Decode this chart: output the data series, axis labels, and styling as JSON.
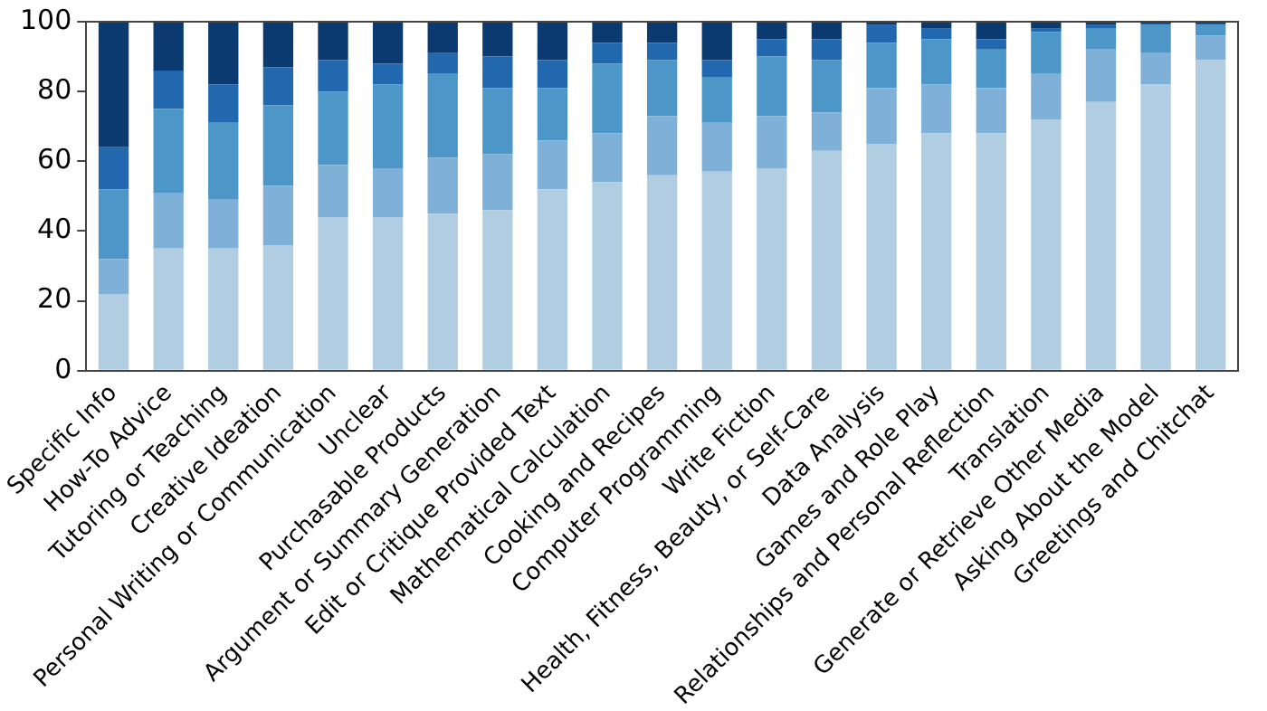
{
  "chart_data": {
    "type": "bar",
    "stacked": true,
    "grid": false,
    "legend": false,
    "categories": [
      "Specific Info",
      "How-To Advice",
      "Tutoring or Teaching",
      "Creative Ideation",
      "Personal Writing or Communication",
      "Unclear",
      "Purchasable Products",
      "Argument or Summary Generation",
      "Edit or Critique Provided Text",
      "Mathematical Calculation",
      "Cooking and Recipes",
      "Computer Programming",
      "Write Fiction",
      "Health, Fitness, Beauty, or Self-Care",
      "Data Analysis",
      "Games and Role Play",
      "Relationships and Personal Reflection",
      "Translation",
      "Generate or Retrieve Other Media",
      "Asking About the Model",
      "Greetings and Chitchat"
    ],
    "series": [
      {
        "color": "#b0cde2",
        "values": [
          22,
          35,
          35,
          36,
          44,
          44,
          45,
          46,
          52,
          54,
          56,
          57,
          58,
          63,
          65,
          68,
          68,
          72,
          77,
          82,
          89
        ]
      },
      {
        "color": "#7fb0d8",
        "values": [
          10,
          16,
          14,
          17,
          15,
          14,
          16,
          16,
          14,
          14,
          17,
          14,
          15,
          11,
          16,
          14,
          13,
          13,
          15,
          9,
          7
        ]
      },
      {
        "color": "#4d97c8",
        "values": [
          20,
          24,
          22,
          23,
          21,
          24,
          24,
          19,
          15,
          20,
          16,
          13,
          17,
          15,
          13,
          13,
          11,
          12,
          6,
          8,
          3
        ]
      },
      {
        "color": "#2268ae",
        "values": [
          12,
          11,
          11,
          11,
          9,
          6,
          6,
          9,
          8,
          6,
          5,
          5,
          5,
          6,
          5,
          3,
          3,
          1,
          1,
          0.5,
          0.5
        ]
      },
      {
        "color": "#0a3a70",
        "values": [
          36,
          14,
          18,
          13,
          11,
          12,
          9,
          10,
          11,
          6,
          6,
          11,
          5,
          5,
          1,
          2,
          5,
          2,
          1,
          0.5,
          0.5
        ]
      }
    ],
    "ylim": [
      0,
      100
    ],
    "yticks": [
      0,
      20,
      40,
      60,
      80,
      100
    ]
  }
}
